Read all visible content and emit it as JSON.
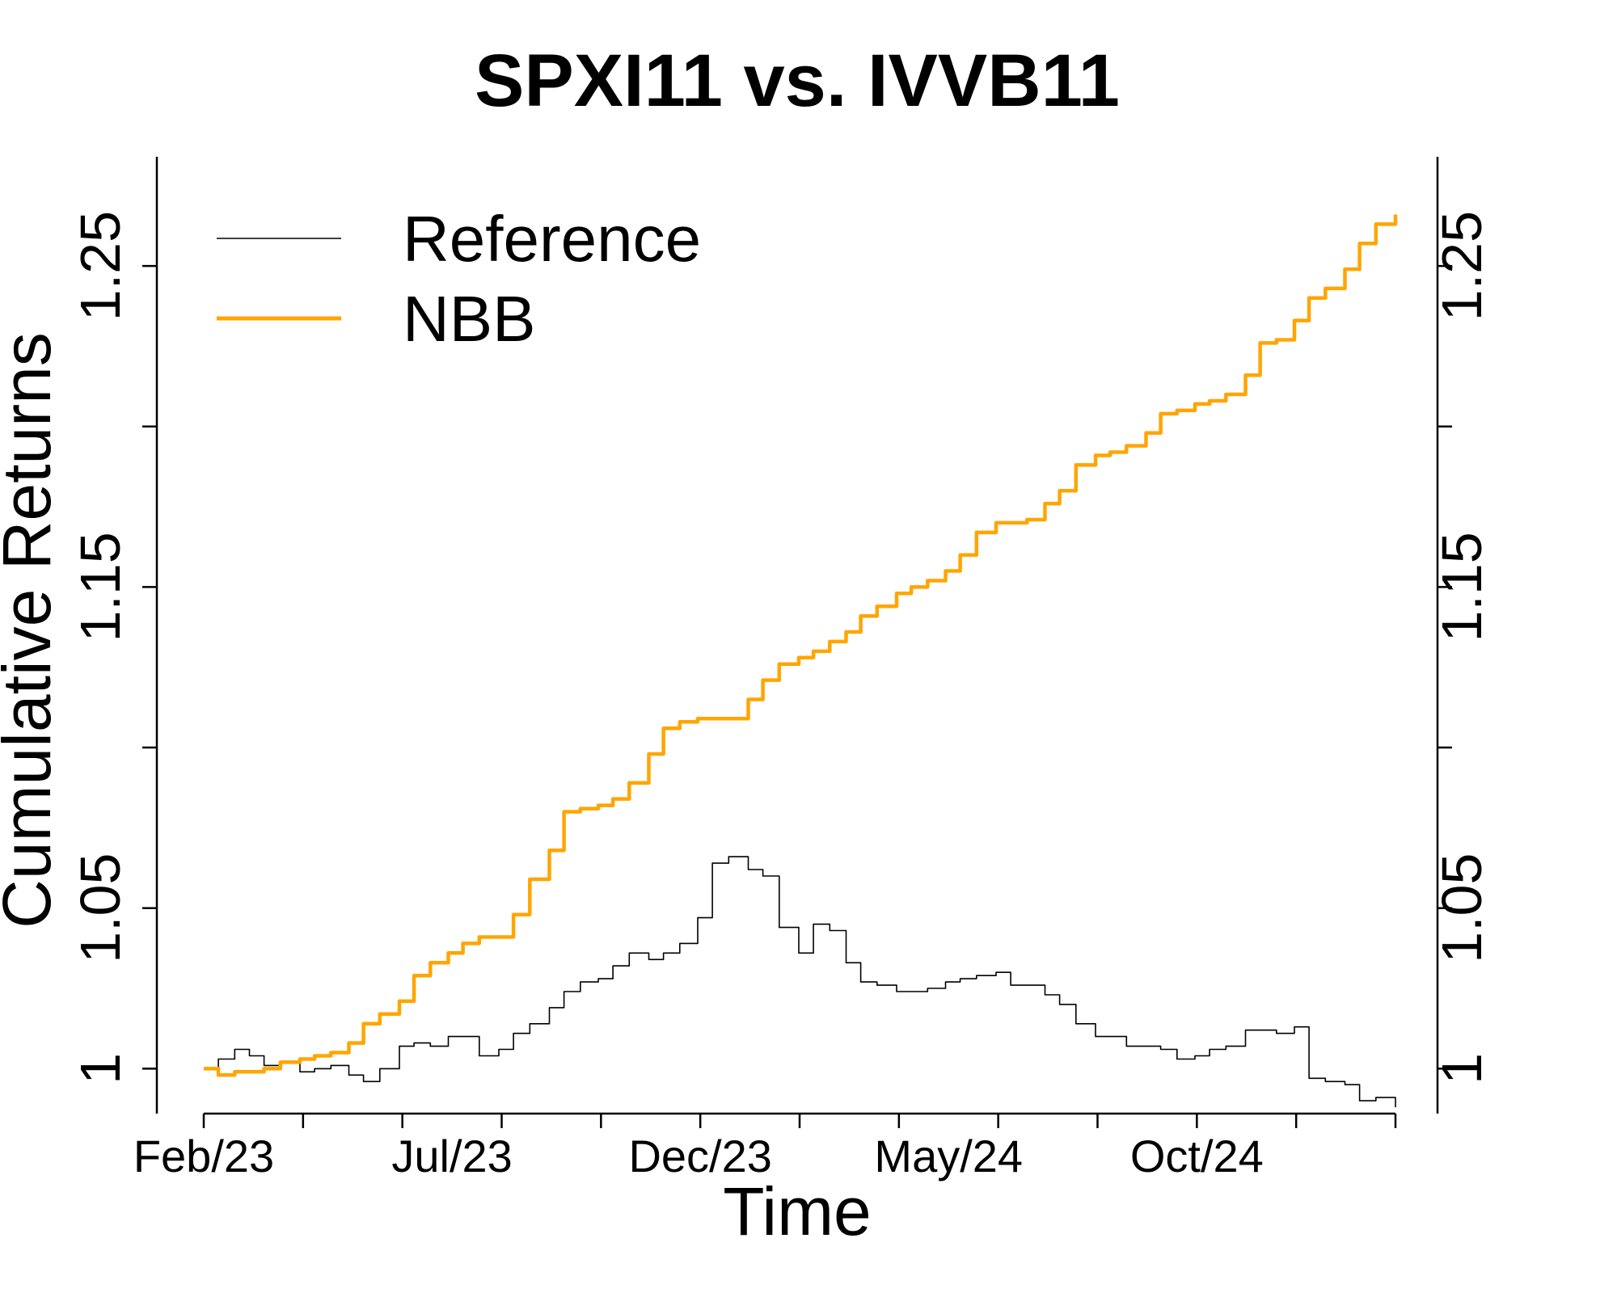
{
  "chart_data": {
    "type": "line",
    "title": "SPXI11 vs. IVVB11",
    "xlabel": "Time",
    "ylabel": "Cumulative Returns",
    "x_tick_labels": [
      "Feb/23",
      "Jul/23",
      "Dec/23",
      "May/24",
      "Oct/24"
    ],
    "y_ticks": [
      1,
      1.05,
      1.1,
      1.15,
      1.2,
      1.25
    ],
    "y_tick_labels": [
      "1",
      "1.05",
      "",
      "1.15",
      "",
      "1.25"
    ],
    "ylim": [
      0.986,
      1.284
    ],
    "x_range": [
      "2023-02",
      "2025-02"
    ],
    "legend_position": "top-left",
    "grid": false,
    "series": [
      {
        "name": "Reference",
        "color": "#000000",
        "points": [
          [
            "2023-02-01",
            1.0
          ],
          [
            "2023-02-10",
            1.003
          ],
          [
            "2023-02-20",
            1.006
          ],
          [
            "2023-03-01",
            1.004
          ],
          [
            "2023-03-10",
            1.001
          ],
          [
            "2023-03-20",
            1.002
          ],
          [
            "2023-04-01",
            0.999
          ],
          [
            "2023-04-10",
            1.0
          ],
          [
            "2023-04-20",
            1.001
          ],
          [
            "2023-05-01",
            0.998
          ],
          [
            "2023-05-10",
            0.996
          ],
          [
            "2023-05-20",
            1.0
          ],
          [
            "2023-06-01",
            1.007
          ],
          [
            "2023-06-10",
            1.008
          ],
          [
            "2023-06-20",
            1.007
          ],
          [
            "2023-07-01",
            1.01
          ],
          [
            "2023-07-10",
            1.01
          ],
          [
            "2023-07-20",
            1.004
          ],
          [
            "2023-08-01",
            1.006
          ],
          [
            "2023-08-10",
            1.011
          ],
          [
            "2023-08-20",
            1.014
          ],
          [
            "2023-09-01",
            1.019
          ],
          [
            "2023-09-10",
            1.024
          ],
          [
            "2023-09-20",
            1.027
          ],
          [
            "2023-10-01",
            1.028
          ],
          [
            "2023-10-10",
            1.032
          ],
          [
            "2023-10-20",
            1.036
          ],
          [
            "2023-11-01",
            1.034
          ],
          [
            "2023-11-10",
            1.036
          ],
          [
            "2023-11-20",
            1.039
          ],
          [
            "2023-12-01",
            1.047
          ],
          [
            "2023-12-10",
            1.064
          ],
          [
            "2023-12-20",
            1.066
          ],
          [
            "2024-01-01",
            1.062
          ],
          [
            "2024-01-10",
            1.06
          ],
          [
            "2024-01-20",
            1.044
          ],
          [
            "2024-02-01",
            1.036
          ],
          [
            "2024-02-10",
            1.045
          ],
          [
            "2024-02-20",
            1.043
          ],
          [
            "2024-03-01",
            1.033
          ],
          [
            "2024-03-10",
            1.027
          ],
          [
            "2024-03-20",
            1.026
          ],
          [
            "2024-04-01",
            1.024
          ],
          [
            "2024-04-10",
            1.024
          ],
          [
            "2024-04-20",
            1.025
          ],
          [
            "2024-05-01",
            1.027
          ],
          [
            "2024-05-10",
            1.028
          ],
          [
            "2024-05-20",
            1.029
          ],
          [
            "2024-06-01",
            1.03
          ],
          [
            "2024-06-10",
            1.026
          ],
          [
            "2024-06-20",
            1.026
          ],
          [
            "2024-07-01",
            1.023
          ],
          [
            "2024-07-10",
            1.02
          ],
          [
            "2024-07-20",
            1.014
          ],
          [
            "2024-08-01",
            1.01
          ],
          [
            "2024-08-10",
            1.01
          ],
          [
            "2024-08-20",
            1.007
          ],
          [
            "2024-09-01",
            1.007
          ],
          [
            "2024-09-10",
            1.006
          ],
          [
            "2024-09-20",
            1.003
          ],
          [
            "2024-10-01",
            1.004
          ],
          [
            "2024-10-10",
            1.006
          ],
          [
            "2024-10-20",
            1.007
          ],
          [
            "2024-11-01",
            1.012
          ],
          [
            "2024-11-10",
            1.012
          ],
          [
            "2024-11-20",
            1.011
          ],
          [
            "2024-12-01",
            1.013
          ],
          [
            "2024-12-10",
            0.997
          ],
          [
            "2024-12-20",
            0.996
          ],
          [
            "2025-01-01",
            0.995
          ],
          [
            "2025-01-10",
            0.99
          ],
          [
            "2025-01-20",
            0.991
          ],
          [
            "2025-02-01",
            0.988
          ]
        ]
      },
      {
        "name": "NBB",
        "color": "#FFA500",
        "points": [
          [
            "2023-02-01",
            1.0
          ],
          [
            "2023-02-10",
            0.998
          ],
          [
            "2023-02-20",
            0.999
          ],
          [
            "2023-03-01",
            0.999
          ],
          [
            "2023-03-10",
            1.0
          ],
          [
            "2023-03-20",
            1.002
          ],
          [
            "2023-04-01",
            1.003
          ],
          [
            "2023-04-10",
            1.004
          ],
          [
            "2023-04-20",
            1.005
          ],
          [
            "2023-05-01",
            1.008
          ],
          [
            "2023-05-10",
            1.014
          ],
          [
            "2023-05-20",
            1.017
          ],
          [
            "2023-06-01",
            1.021
          ],
          [
            "2023-06-10",
            1.029
          ],
          [
            "2023-06-20",
            1.033
          ],
          [
            "2023-07-01",
            1.036
          ],
          [
            "2023-07-10",
            1.039
          ],
          [
            "2023-07-20",
            1.041
          ],
          [
            "2023-08-01",
            1.041
          ],
          [
            "2023-08-10",
            1.048
          ],
          [
            "2023-08-20",
            1.059
          ],
          [
            "2023-09-01",
            1.068
          ],
          [
            "2023-09-10",
            1.08
          ],
          [
            "2023-09-20",
            1.081
          ],
          [
            "2023-10-01",
            1.082
          ],
          [
            "2023-10-10",
            1.084
          ],
          [
            "2023-10-20",
            1.089
          ],
          [
            "2023-11-01",
            1.098
          ],
          [
            "2023-11-10",
            1.106
          ],
          [
            "2023-11-20",
            1.108
          ],
          [
            "2023-12-01",
            1.109
          ],
          [
            "2023-12-10",
            1.109
          ],
          [
            "2023-12-20",
            1.109
          ],
          [
            "2024-01-01",
            1.115
          ],
          [
            "2024-01-10",
            1.121
          ],
          [
            "2024-01-20",
            1.126
          ],
          [
            "2024-02-01",
            1.128
          ],
          [
            "2024-02-10",
            1.13
          ],
          [
            "2024-02-20",
            1.133
          ],
          [
            "2024-03-01",
            1.136
          ],
          [
            "2024-03-10",
            1.141
          ],
          [
            "2024-03-20",
            1.144
          ],
          [
            "2024-04-01",
            1.148
          ],
          [
            "2024-04-10",
            1.15
          ],
          [
            "2024-04-20",
            1.152
          ],
          [
            "2024-05-01",
            1.155
          ],
          [
            "2024-05-10",
            1.16
          ],
          [
            "2024-05-20",
            1.167
          ],
          [
            "2024-06-01",
            1.17
          ],
          [
            "2024-06-10",
            1.17
          ],
          [
            "2024-06-20",
            1.171
          ],
          [
            "2024-07-01",
            1.176
          ],
          [
            "2024-07-10",
            1.18
          ],
          [
            "2024-07-20",
            1.188
          ],
          [
            "2024-08-01",
            1.191
          ],
          [
            "2024-08-10",
            1.192
          ],
          [
            "2024-08-20",
            1.194
          ],
          [
            "2024-09-01",
            1.198
          ],
          [
            "2024-09-10",
            1.204
          ],
          [
            "2024-09-20",
            1.205
          ],
          [
            "2024-10-01",
            1.207
          ],
          [
            "2024-10-10",
            1.208
          ],
          [
            "2024-10-20",
            1.21
          ],
          [
            "2024-11-01",
            1.216
          ],
          [
            "2024-11-10",
            1.226
          ],
          [
            "2024-11-20",
            1.227
          ],
          [
            "2024-12-01",
            1.233
          ],
          [
            "2024-12-10",
            1.24
          ],
          [
            "2024-12-20",
            1.243
          ],
          [
            "2025-01-01",
            1.249
          ],
          [
            "2025-01-10",
            1.257
          ],
          [
            "2025-01-20",
            1.263
          ],
          [
            "2025-02-01",
            1.266
          ]
        ]
      }
    ]
  }
}
